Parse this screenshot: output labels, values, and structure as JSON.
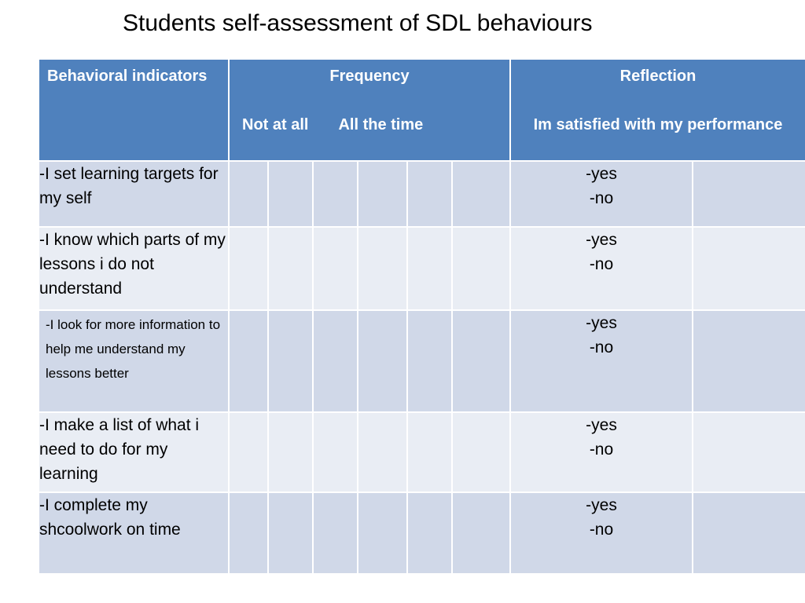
{
  "title": "Students self-assessment of SDL behaviours",
  "table": {
    "header": {
      "indicators": "Behavioral indicators",
      "frequency": "Frequency",
      "frequency_low": "Not at all",
      "frequency_high": "All the time",
      "reflection": "Reflection",
      "reflection_question": "Im satisfied with my performance"
    },
    "rows": [
      {
        "indicator": "-I set learning targets for my self",
        "yes": "-yes",
        "no": "-no"
      },
      {
        "indicator": "-I know which parts of my lessons i do not understand",
        "yes": "-yes",
        "no": "-no"
      },
      {
        "indicator": "-I look for more information to help me understand my lessons better",
        "yes": "-yes",
        "no": "-no"
      },
      {
        "indicator": "-I make a list of what i need to do for my learning",
        "yes": "-yes",
        "no": "-no"
      },
      {
        "indicator": "-I complete my shcoolwork on time",
        "yes": "-yes",
        "no": "-no"
      }
    ],
    "colors": {
      "header_bg": "#4f81bd",
      "row_dark": "#d0d8e8",
      "row_light": "#e9edf4"
    }
  }
}
